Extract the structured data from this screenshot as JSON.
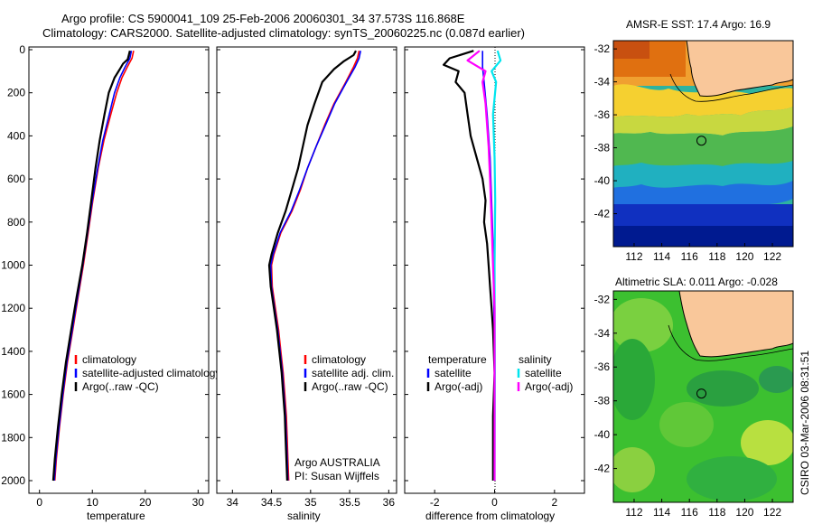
{
  "header": {
    "line1": "Argo profile: CS 5900041_109 25-Feb-2006 20060301_34 37.573S 116.868E",
    "line2": "Climatology: CARS2000. Satellite-adjusted climatology: synTS_20060225.nc (0.087d earlier)"
  },
  "credit": "CSIRO 03-Mar-2006 08:31:51",
  "colors": {
    "clim": "#ff0000",
    "sat": "#0000ff",
    "argo": "#000000",
    "sat_s": "#00e5ee",
    "argo_s": "#ff00ff",
    "land": "#f9c79a"
  },
  "chart_data": [
    {
      "type": "line",
      "name": "temperature-panel",
      "xlabel": "temperature",
      "ylabel": "",
      "xlim": [
        -2,
        32
      ],
      "ylim": [
        2000,
        0
      ],
      "xticks": [
        0,
        10,
        20,
        30
      ],
      "yticks": [
        0,
        200,
        400,
        600,
        800,
        1000,
        1200,
        1400,
        1600,
        1800,
        2000
      ],
      "legend": [
        "climatology",
        "satellite-adjusted climatology",
        "Argo(..raw -QC)"
      ],
      "series": [
        {
          "name": "climatology",
          "color": "clim",
          "points": [
            [
              17.8,
              5
            ],
            [
              17.5,
              40
            ],
            [
              16.6,
              80
            ],
            [
              15.6,
              130
            ],
            [
              14.6,
              200
            ],
            [
              13.5,
              300
            ],
            [
              12.2,
              420
            ],
            [
              11.1,
              550
            ],
            [
              10.1,
              700
            ],
            [
              9.2,
              850
            ],
            [
              8.3,
              1000
            ],
            [
              7.3,
              1150
            ],
            [
              6.3,
              1300
            ],
            [
              5.3,
              1450
            ],
            [
              4.5,
              1600
            ],
            [
              3.8,
              1750
            ],
            [
              3.2,
              1900
            ],
            [
              2.9,
              2000
            ]
          ]
        },
        {
          "name": "satellite-adjusted climatology",
          "color": "sat",
          "points": [
            [
              17.4,
              5
            ],
            [
              17.1,
              40
            ],
            [
              16.2,
              80
            ],
            [
              15.2,
              130
            ],
            [
              14.2,
              200
            ],
            [
              13.2,
              300
            ],
            [
              12.0,
              420
            ],
            [
              11.0,
              550
            ],
            [
              10.0,
              700
            ],
            [
              9.1,
              850
            ],
            [
              8.2,
              1000
            ],
            [
              7.2,
              1150
            ],
            [
              6.2,
              1300
            ],
            [
              5.2,
              1450
            ],
            [
              4.4,
              1600
            ],
            [
              3.7,
              1750
            ],
            [
              3.1,
              1900
            ],
            [
              2.8,
              2000
            ]
          ]
        },
        {
          "name": "Argo(..raw -QC)",
          "color": "argo",
          "points": [
            [
              17.1,
              5
            ],
            [
              16.9,
              25
            ],
            [
              16.7,
              45
            ],
            [
              15.8,
              65
            ],
            [
              15.2,
              90
            ],
            [
              14.2,
              130
            ],
            [
              13.1,
              200
            ],
            [
              12.3,
              300
            ],
            [
              11.4,
              420
            ],
            [
              10.6,
              550
            ],
            [
              9.8,
              700
            ],
            [
              9.0,
              850
            ],
            [
              8.1,
              1000
            ],
            [
              7.0,
              1150
            ],
            [
              6.0,
              1300
            ],
            [
              5.0,
              1450
            ],
            [
              4.2,
              1600
            ],
            [
              3.5,
              1750
            ],
            [
              2.9,
              1900
            ],
            [
              2.6,
              2000
            ]
          ]
        }
      ]
    },
    {
      "type": "line",
      "name": "salinity-panel",
      "xlabel": "salinity",
      "ylabel": "",
      "xlim": [
        33.8,
        36.1
      ],
      "ylim": [
        2000,
        0
      ],
      "xticks": [
        34,
        34.5,
        35,
        35.5,
        36
      ],
      "yticks": [
        0,
        200,
        400,
        600,
        800,
        1000,
        1200,
        1400,
        1600,
        1800,
        2000
      ],
      "legend": [
        "climatology",
        "satellite adj. clim.",
        "Argo(..raw -QC)"
      ],
      "annotation": [
        "Argo AUSTRALIA",
        "PI: Susan Wijffels"
      ],
      "series": [
        {
          "name": "climatology",
          "color": "clim",
          "points": [
            [
              35.62,
              5
            ],
            [
              35.6,
              40
            ],
            [
              35.55,
              80
            ],
            [
              35.45,
              150
            ],
            [
              35.3,
              250
            ],
            [
              35.18,
              350
            ],
            [
              35.07,
              450
            ],
            [
              34.96,
              550
            ],
            [
              34.87,
              650
            ],
            [
              34.76,
              750
            ],
            [
              34.62,
              850
            ],
            [
              34.53,
              950
            ],
            [
              34.5,
              1000
            ],
            [
              34.51,
              1100
            ],
            [
              34.55,
              1200
            ],
            [
              34.59,
              1300
            ],
            [
              34.62,
              1400
            ],
            [
              34.65,
              1500
            ],
            [
              34.67,
              1600
            ],
            [
              34.69,
              1700
            ],
            [
              34.7,
              1800
            ],
            [
              34.71,
              1900
            ],
            [
              34.72,
              2000
            ]
          ]
        },
        {
          "name": "satellite adj. clim.",
          "color": "sat",
          "points": [
            [
              35.64,
              5
            ],
            [
              35.62,
              40
            ],
            [
              35.57,
              80
            ],
            [
              35.46,
              150
            ],
            [
              35.31,
              250
            ],
            [
              35.19,
              350
            ],
            [
              35.07,
              450
            ],
            [
              34.96,
              550
            ],
            [
              34.86,
              650
            ],
            [
              34.75,
              750
            ],
            [
              34.61,
              850
            ],
            [
              34.52,
              950
            ],
            [
              34.49,
              1000
            ],
            [
              34.5,
              1100
            ],
            [
              34.54,
              1200
            ],
            [
              34.58,
              1300
            ],
            [
              34.61,
              1400
            ],
            [
              34.64,
              1500
            ],
            [
              34.66,
              1600
            ],
            [
              34.68,
              1700
            ],
            [
              34.69,
              1800
            ],
            [
              34.7,
              1900
            ],
            [
              34.71,
              2000
            ]
          ]
        },
        {
          "name": "Argo(..raw -QC)",
          "color": "argo",
          "points": [
            [
              35.58,
              5
            ],
            [
              35.55,
              25
            ],
            [
              35.42,
              55
            ],
            [
              35.3,
              90
            ],
            [
              35.15,
              150
            ],
            [
              35.05,
              250
            ],
            [
              34.96,
              350
            ],
            [
              34.9,
              450
            ],
            [
              34.84,
              550
            ],
            [
              34.76,
              650
            ],
            [
              34.68,
              750
            ],
            [
              34.58,
              850
            ],
            [
              34.5,
              950
            ],
            [
              34.47,
              1000
            ],
            [
              34.49,
              1100
            ],
            [
              34.53,
              1200
            ],
            [
              34.57,
              1300
            ],
            [
              34.6,
              1400
            ],
            [
              34.63,
              1500
            ],
            [
              34.65,
              1600
            ],
            [
              34.67,
              1700
            ],
            [
              34.68,
              1800
            ],
            [
              34.69,
              1900
            ],
            [
              34.7,
              2000
            ]
          ]
        }
      ]
    },
    {
      "type": "line",
      "name": "difference-panel",
      "xlabel": "difference from climatology",
      "ylabel": "",
      "xlim": [
        -3,
        3
      ],
      "ylim": [
        2000,
        0
      ],
      "xticks": [
        -2,
        0,
        2
      ],
      "yticks": [
        0,
        200,
        400,
        600,
        800,
        1000,
        1200,
        1400,
        1600,
        1800,
        2000
      ],
      "legend_temperature": [
        "temperature",
        "satellite",
        "Argo(-adj)"
      ],
      "legend_salinity": [
        "salinity",
        "satellite",
        "Argo(-adj)"
      ],
      "series": [
        {
          "name": "temperature satellite",
          "color": "sat",
          "points": [
            [
              -0.4,
              5
            ],
            [
              -0.4,
              40
            ],
            [
              -0.4,
              80
            ],
            [
              -0.35,
              150
            ],
            [
              -0.25,
              300
            ],
            [
              -0.15,
              500
            ],
            [
              -0.1,
              700
            ],
            [
              -0.05,
              900
            ],
            [
              -0.03,
              1100
            ],
            [
              0,
              1500
            ],
            [
              0,
              2000
            ]
          ]
        },
        {
          "name": "temperature Argo(-adj)",
          "color": "argo",
          "points": [
            [
              -0.7,
              5
            ],
            [
              -1.5,
              40
            ],
            [
              -1.7,
              70
            ],
            [
              -1.2,
              100
            ],
            [
              -1.3,
              150
            ],
            [
              -1.0,
              200
            ],
            [
              -0.9,
              300
            ],
            [
              -0.8,
              400
            ],
            [
              -0.6,
              500
            ],
            [
              -0.4,
              600
            ],
            [
              -0.3,
              700
            ],
            [
              -0.35,
              800
            ],
            [
              -0.25,
              900
            ],
            [
              -0.2,
              1000
            ],
            [
              -0.15,
              1100
            ],
            [
              -0.1,
              1200
            ],
            [
              -0.05,
              1300
            ],
            [
              0,
              1500
            ],
            [
              -0.05,
              1700
            ],
            [
              -0.05,
              2000
            ]
          ]
        },
        {
          "name": "salinity satellite",
          "color": "sat_s",
          "points": [
            [
              0.1,
              5
            ],
            [
              0.2,
              50
            ],
            [
              -0.1,
              100
            ],
            [
              0.05,
              150
            ],
            [
              -0.05,
              300
            ],
            [
              0,
              500
            ],
            [
              0.02,
              700
            ],
            [
              0,
              1000
            ],
            [
              0.01,
              1500
            ],
            [
              0,
              2000
            ]
          ]
        },
        {
          "name": "salinity Argo(-adj)",
          "color": "argo_s",
          "points": [
            [
              -0.5,
              5
            ],
            [
              -0.9,
              50
            ],
            [
              -0.3,
              100
            ],
            [
              -0.4,
              150
            ],
            [
              -0.3,
              250
            ],
            [
              -0.25,
              350
            ],
            [
              -0.2,
              450
            ],
            [
              -0.15,
              600
            ],
            [
              -0.1,
              800
            ],
            [
              -0.05,
              1000
            ],
            [
              0,
              1200
            ],
            [
              0,
              2000
            ]
          ]
        }
      ]
    },
    {
      "type": "heatmap",
      "name": "sst-map",
      "title": "AMSR-E SST: 17.4 Argo: 16.9",
      "xlim": [
        110.5,
        123.5
      ],
      "ylim": [
        -44,
        -31.5
      ],
      "xticks": [
        112,
        114,
        116,
        118,
        120,
        122
      ],
      "yticks": [
        -32,
        -34,
        -36,
        -38,
        -40,
        -42
      ],
      "marker": [
        116.87,
        -37.57
      ]
    },
    {
      "type": "heatmap",
      "name": "sla-map",
      "title": "Altimetric SLA: 0.011 Argo: -0.028",
      "xlim": [
        110.5,
        123.5
      ],
      "ylim": [
        -44,
        -31.5
      ],
      "xticks": [
        112,
        114,
        116,
        118,
        120,
        122
      ],
      "yticks": [
        -32,
        -34,
        -36,
        -38,
        -40,
        -42
      ],
      "marker": [
        116.87,
        -37.57
      ]
    }
  ]
}
